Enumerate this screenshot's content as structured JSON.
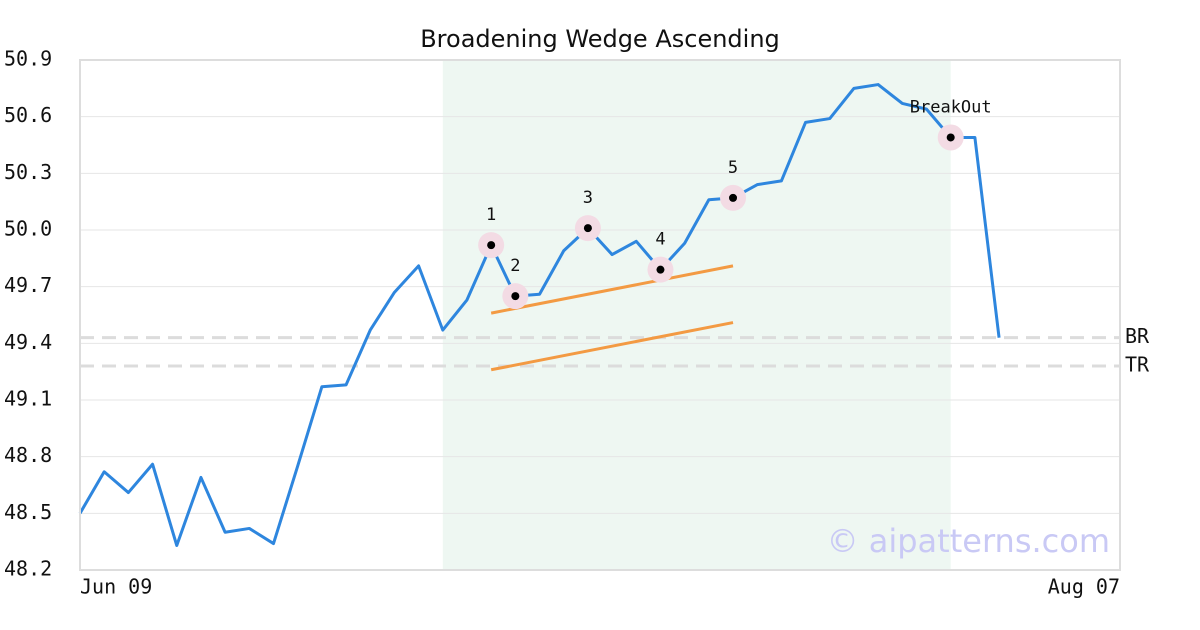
{
  "chart_data": {
    "type": "line",
    "title": "Broadening Wedge Ascending",
    "watermark": "© aipatterns.com",
    "x": [
      0,
      1,
      2,
      3,
      4,
      5,
      6,
      7,
      8,
      9,
      10,
      11,
      12,
      13,
      14,
      15,
      16,
      17,
      18,
      19,
      20,
      21,
      22,
      23,
      24,
      25,
      26,
      27,
      28,
      29,
      30,
      31,
      32,
      33,
      34,
      35,
      36,
      37,
      38
    ],
    "series": [
      {
        "color": "#2e86de",
        "values": [
          48.5,
          48.72,
          48.61,
          48.76,
          48.33,
          48.69,
          48.4,
          48.42,
          48.34,
          48.75,
          49.17,
          49.18,
          49.47,
          49.67,
          49.81,
          49.47,
          49.63,
          49.92,
          49.65,
          49.66,
          49.89,
          50.01,
          49.87,
          49.94,
          49.79,
          49.93,
          50.16,
          50.17,
          50.24,
          50.26,
          50.57,
          50.59,
          50.75,
          50.77,
          50.67,
          50.64,
          50.49,
          50.49,
          49.43
        ]
      }
    ],
    "xlim": [
      0,
      43
    ],
    "xticks": [
      {
        "value": 0,
        "label": "Jun 09"
      },
      {
        "value": 43,
        "label": "Aug 07"
      }
    ],
    "ylim": [
      48.2,
      50.9
    ],
    "yticks": [
      48.2,
      48.5,
      48.8,
      49.1,
      49.4,
      49.7,
      {
        "value": 50,
        "label": "50.0"
      },
      50.3,
      50.6,
      50.9
    ],
    "grid": true,
    "highlight": {
      "x": [
        15,
        36
      ],
      "color": "#eef7f2"
    },
    "pattern_points": [
      {
        "label": "1",
        "index": 17
      },
      {
        "label": "2",
        "index": 18
      },
      {
        "label": "3",
        "index": 21
      },
      {
        "label": "4",
        "index": 24
      },
      {
        "label": "5",
        "index": 27
      },
      {
        "label": "BreakOut",
        "index": 36
      }
    ],
    "levels": [
      {
        "label": "BR",
        "value": 49.43
      },
      {
        "label": "TR",
        "value": 49.28
      }
    ],
    "trendlines": [
      {
        "color": "#f39a43",
        "x": [
          17,
          27
        ],
        "values": [
          49.56,
          49.81
        ]
      },
      {
        "color": "#f39a43",
        "x": [
          17,
          27
        ],
        "values": [
          49.26,
          49.51
        ]
      }
    ]
  }
}
